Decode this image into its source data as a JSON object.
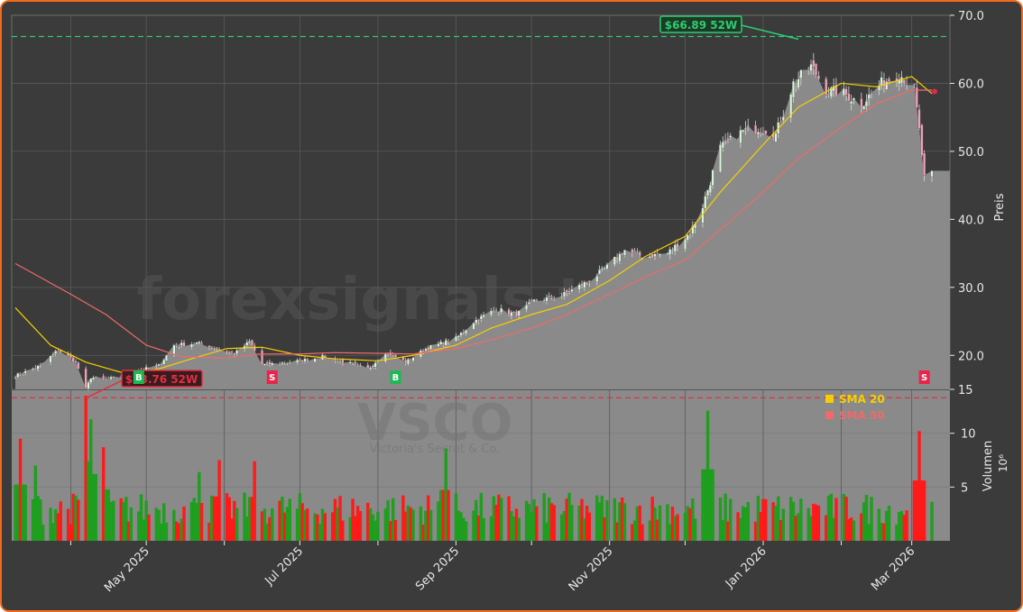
{
  "colors": {
    "background": "#3b3b3b",
    "area_fill": "#8a8a8a",
    "grid": "#5a5a5a",
    "sma20": "#f5d000",
    "sma50": "#f06a6a",
    "up": "#1f9e1f",
    "down": "#ff1a1a",
    "high_line": "#2ecc71",
    "low_line": "#e03040",
    "buy_marker": "#1db954",
    "sell_marker": "#e8244c",
    "border": "#f26a1b"
  },
  "watermark": {
    "site": "forexsignals.trade",
    "ticker": "VSCO",
    "company": "Victoria's Secret & Co."
  },
  "annotations": {
    "high_label": "$66.89 52W",
    "low_label": "$13.76 52W"
  },
  "signals": [
    {
      "label": "B",
      "date": "2025-04-28"
    },
    {
      "label": "S",
      "date": "2025-06-20"
    },
    {
      "label": "B",
      "date": "2025-08-08"
    },
    {
      "label": "S",
      "date": "2026-03-06"
    }
  ],
  "chart_data": {
    "type": "line",
    "title": "",
    "x_range": [
      "2025-03-10",
      "2026-03-09"
    ],
    "x_ticks": [
      "May 2025",
      "Jul 2025",
      "Sep 2025",
      "Nov 2025",
      "Jan 2026",
      "Mar 2026"
    ],
    "price_axis": {
      "label": "Preis",
      "ylim": [
        15,
        70
      ],
      "ticks": [
        "15",
        "20.0",
        "30.0",
        "40.0",
        "50.0",
        "60.0",
        "70.0"
      ]
    },
    "volume_axis": {
      "label": "Volumen",
      "unit": "10⁶",
      "ylim": [
        0,
        14
      ],
      "ticks": [
        "5",
        "10"
      ]
    },
    "legend": {
      "placement": "top-right",
      "entries": [
        "SMA 20",
        "SMA 50"
      ]
    },
    "grid": true,
    "high_52w": 66.89,
    "low_52w": 13.76,
    "price_keypoints": [
      [
        "2025-03-10",
        17.0
      ],
      [
        "2025-03-20",
        18.5
      ],
      [
        "2025-03-27",
        20.8
      ],
      [
        "2025-04-03",
        19.0
      ],
      [
        "2025-04-07",
        15.0
      ],
      [
        "2025-04-09",
        16.8
      ],
      [
        "2025-04-14",
        16.5
      ],
      [
        "2025-04-21",
        16.8
      ],
      [
        "2025-04-28",
        17.8
      ],
      [
        "2025-05-06",
        18.5
      ],
      [
        "2025-05-12",
        21.5
      ],
      [
        "2025-05-21",
        21.8
      ],
      [
        "2025-05-28",
        21.2
      ],
      [
        "2025-06-05",
        20.2
      ],
      [
        "2025-06-11",
        22.0
      ],
      [
        "2025-06-16",
        18.6
      ],
      [
        "2025-07-01",
        19.2
      ],
      [
        "2025-07-10",
        19.8
      ],
      [
        "2025-07-21",
        18.8
      ],
      [
        "2025-07-28",
        18.0
      ],
      [
        "2025-08-04",
        20.5
      ],
      [
        "2025-08-12",
        19.0
      ],
      [
        "2025-08-20",
        21.0
      ],
      [
        "2025-09-01",
        22.5
      ],
      [
        "2025-09-08",
        25.0
      ],
      [
        "2025-09-17",
        26.8
      ],
      [
        "2025-09-25",
        26.0
      ],
      [
        "2025-10-02",
        28.0
      ],
      [
        "2025-10-13",
        28.8
      ],
      [
        "2025-10-24",
        31.0
      ],
      [
        "2025-10-31",
        33.0
      ],
      [
        "2025-11-07",
        35.5
      ],
      [
        "2025-11-14",
        34.5
      ],
      [
        "2025-11-24",
        35.0
      ],
      [
        "2025-12-03",
        38.0
      ],
      [
        "2025-12-08",
        42.0
      ],
      [
        "2025-12-15",
        50.5
      ],
      [
        "2025-12-24",
        53.0
      ],
      [
        "2025-12-31",
        53.5
      ],
      [
        "2026-01-06",
        52.5
      ],
      [
        "2026-01-13",
        60.0
      ],
      [
        "2026-01-20",
        62.5
      ],
      [
        "2026-01-26",
        59.0
      ],
      [
        "2026-02-02",
        58.5
      ],
      [
        "2026-02-09",
        57.0
      ],
      [
        "2026-02-17",
        60.0
      ],
      [
        "2026-02-24",
        61.5
      ],
      [
        "2026-03-02",
        59.0
      ],
      [
        "2026-03-04",
        53.0
      ],
      [
        "2026-03-06",
        46.0
      ],
      [
        "2026-03-09",
        46.5
      ]
    ],
    "sma20_keypoints": [
      [
        "2025-03-10",
        27.0
      ],
      [
        "2025-03-24",
        21.5
      ],
      [
        "2025-04-07",
        19.0
      ],
      [
        "2025-04-21",
        17.5
      ],
      [
        "2025-05-05",
        17.9
      ],
      [
        "2025-05-19",
        19.5
      ],
      [
        "2025-06-02",
        21.0
      ],
      [
        "2025-06-16",
        21.2
      ],
      [
        "2025-07-01",
        20.0
      ],
      [
        "2025-07-15",
        19.5
      ],
      [
        "2025-08-01",
        19.2
      ],
      [
        "2025-08-15",
        20.0
      ],
      [
        "2025-09-01",
        21.5
      ],
      [
        "2025-09-15",
        24.0
      ],
      [
        "2025-10-01",
        26.0
      ],
      [
        "2025-10-15",
        27.5
      ],
      [
        "2025-11-01",
        31.0
      ],
      [
        "2025-11-15",
        34.5
      ],
      [
        "2025-12-01",
        37.5
      ],
      [
        "2025-12-15",
        44.0
      ],
      [
        "2026-01-01",
        51.0
      ],
      [
        "2026-01-15",
        56.5
      ],
      [
        "2026-02-01",
        60.0
      ],
      [
        "2026-02-15",
        59.5
      ],
      [
        "2026-03-01",
        61.0
      ],
      [
        "2026-03-09",
        58.5
      ]
    ],
    "sma50_keypoints": [
      [
        "2025-03-10",
        33.5
      ],
      [
        "2025-04-01",
        29.0
      ],
      [
        "2025-04-15",
        26.0
      ],
      [
        "2025-05-01",
        21.5
      ],
      [
        "2025-05-15",
        19.8
      ],
      [
        "2025-06-01",
        19.6
      ],
      [
        "2025-06-15",
        20.2
      ],
      [
        "2025-07-01",
        20.2
      ],
      [
        "2025-07-15",
        20.4
      ],
      [
        "2025-08-01",
        20.3
      ],
      [
        "2025-08-15",
        20.2
      ],
      [
        "2025-09-01",
        21.0
      ],
      [
        "2025-09-15",
        22.3
      ],
      [
        "2025-10-01",
        24.0
      ],
      [
        "2025-10-15",
        26.0
      ],
      [
        "2025-11-01",
        29.0
      ],
      [
        "2025-11-15",
        31.5
      ],
      [
        "2025-12-01",
        34.0
      ],
      [
        "2025-12-15",
        38.5
      ],
      [
        "2026-01-01",
        44.0
      ],
      [
        "2026-01-15",
        49.0
      ],
      [
        "2026-02-01",
        53.5
      ],
      [
        "2026-02-15",
        57.0
      ],
      [
        "2026-03-01",
        59.0
      ],
      [
        "2026-03-09",
        59.0
      ]
    ],
    "volume_spikes_millions": [
      [
        "2025-03-12",
        9.5
      ],
      [
        "2025-03-18",
        7.0
      ],
      [
        "2025-04-07",
        13.5
      ],
      [
        "2025-04-09",
        11.3
      ],
      [
        "2025-04-14",
        8.7
      ],
      [
        "2025-05-22",
        6.4
      ],
      [
        "2025-05-30",
        7.5
      ],
      [
        "2025-06-13",
        7.4
      ],
      [
        "2025-08-28",
        8.6
      ],
      [
        "2025-12-10",
        12.1
      ],
      [
        "2026-03-04",
        10.2
      ]
    ]
  }
}
